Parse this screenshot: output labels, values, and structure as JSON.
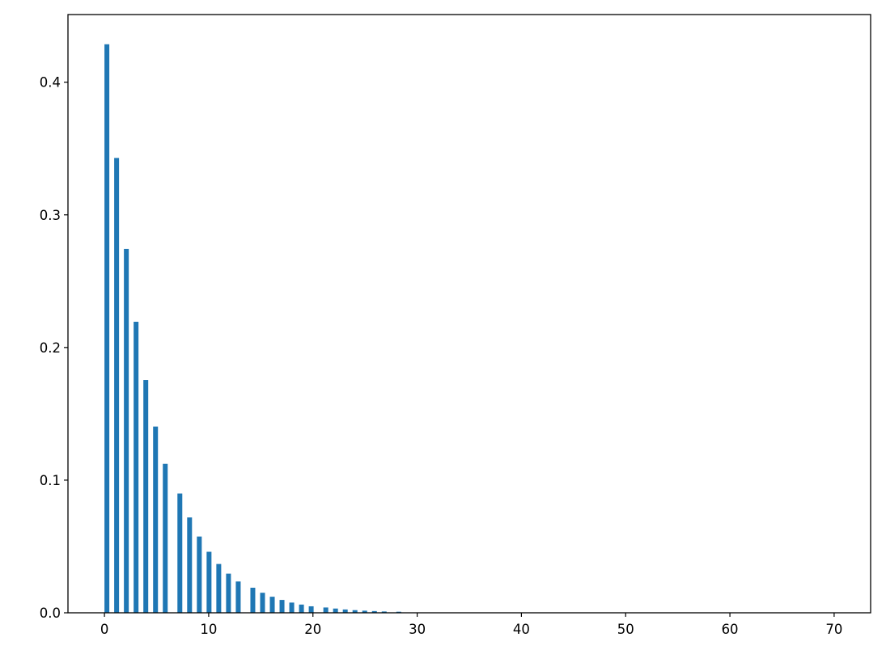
{
  "chart_data": {
    "type": "bar",
    "title": "",
    "xlabel": "",
    "ylabel": "",
    "xlim": [
      -3.5,
      73.5
    ],
    "ylim": [
      0,
      0.451
    ],
    "grid": false,
    "bar_color": "#1f77b4",
    "bin_width": 0.4667,
    "x": [
      0,
      1,
      2,
      3,
      4,
      5,
      6,
      7,
      8,
      9,
      10,
      11,
      12,
      13,
      14,
      15,
      16,
      17,
      18,
      19,
      20,
      21,
      22,
      23,
      24,
      25,
      26,
      27,
      28
    ],
    "bin_left": [
      0,
      0.933,
      1.867,
      2.8,
      3.733,
      4.667,
      5.6,
      7.0,
      7.933,
      8.867,
      9.8,
      10.733,
      11.667,
      12.6,
      14.0,
      14.933,
      15.867,
      16.8,
      17.733,
      18.667,
      19.6,
      21.0,
      21.933,
      22.867,
      23.8,
      24.733,
      25.667,
      26.6,
      28.0
    ],
    "values": [
      0.4286,
      0.3429,
      0.2743,
      0.2194,
      0.1755,
      0.1404,
      0.1123,
      0.0899,
      0.0719,
      0.0575,
      0.046,
      0.0368,
      0.0295,
      0.0236,
      0.0189,
      0.0151,
      0.0121,
      0.0097,
      0.0077,
      0.0062,
      0.0049,
      0.004,
      0.0032,
      0.0025,
      0.002,
      0.0016,
      0.0013,
      0.001,
      0.0008
    ],
    "xticks": [
      "0",
      "10",
      "20",
      "30",
      "40",
      "50",
      "60",
      "70"
    ],
    "yticks": [
      "0.0",
      "0.1",
      "0.2",
      "0.3",
      "0.4"
    ]
  }
}
